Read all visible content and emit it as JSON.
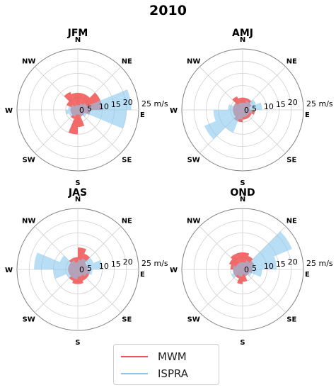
{
  "colors": {
    "mwm": "#f05050",
    "ispra": "#88c8ee",
    "grid": "#d0d0d0",
    "outer": "#808080"
  },
  "title": "2010",
  "chart_data": [
    {
      "type": "polar-bar",
      "title": "JFM",
      "directions": [
        "N",
        "NE",
        "E",
        "SE",
        "S",
        "SW",
        "W",
        "NW"
      ],
      "radial_ticks": [
        "0",
        "5",
        "10",
        "15",
        "20",
        "25 m/s"
      ],
      "rmax": 25,
      "bin_degrees": 22.5,
      "series": [
        {
          "name": "MWM",
          "bin_start_deg": [
            0,
            22.5,
            45,
            67.5,
            90,
            112.5,
            135,
            157.5,
            180,
            202.5,
            225,
            247.5,
            270,
            292.5,
            315,
            337.5
          ],
          "values": [
            7,
            7,
            10,
            10,
            5,
            3,
            3,
            7,
            10,
            4,
            3,
            3,
            3,
            5,
            8,
            7
          ]
        },
        {
          "name": "ISPRA",
          "bin_start_deg": [
            0,
            22.5,
            45,
            67.5,
            90,
            112.5,
            135,
            157.5,
            180,
            202.5,
            225,
            247.5,
            270,
            292.5,
            315,
            337.5
          ],
          "values": [
            2,
            3,
            4,
            22,
            20,
            4,
            3,
            2,
            2,
            3,
            4,
            5,
            4,
            3,
            2,
            2
          ]
        }
      ]
    },
    {
      "type": "polar-bar",
      "title": "AMJ",
      "directions": [
        "N",
        "NE",
        "E",
        "SE",
        "S",
        "SW",
        "W",
        "NW"
      ],
      "radial_ticks": [
        "0",
        "5",
        "10",
        "15",
        "20",
        "25 m/s"
      ],
      "rmax": 25,
      "bin_degrees": 22.5,
      "series": [
        {
          "name": "MWM",
          "bin_start_deg": [
            0,
            22.5,
            45,
            67.5,
            90,
            112.5,
            135,
            157.5,
            180,
            202.5,
            225,
            247.5,
            270,
            292.5,
            315,
            337.5
          ],
          "values": [
            5,
            5,
            4,
            3,
            5,
            4,
            4,
            4,
            5,
            5,
            4,
            4,
            4,
            4,
            6,
            5
          ]
        },
        {
          "name": "ISPRA",
          "bin_start_deg": [
            0,
            22.5,
            45,
            67.5,
            90,
            112.5,
            135,
            157.5,
            180,
            202.5,
            225,
            247.5,
            270,
            292.5,
            315,
            337.5
          ],
          "values": [
            3,
            4,
            6,
            8,
            4,
            3,
            3,
            3,
            4,
            10,
            17,
            12,
            6,
            4,
            3,
            3
          ]
        }
      ]
    },
    {
      "type": "polar-bar",
      "title": "JAS",
      "directions": [
        "N",
        "NE",
        "E",
        "SE",
        "S",
        "SW",
        "W",
        "NW"
      ],
      "radial_ticks": [
        "0",
        "5",
        "10",
        "15",
        "20",
        "25 m/s"
      ],
      "rmax": 25,
      "bin_degrees": 22.5,
      "series": [
        {
          "name": "MWM",
          "bin_start_deg": [
            0,
            22.5,
            45,
            67.5,
            90,
            112.5,
            135,
            157.5,
            180,
            202.5,
            225,
            247.5,
            270,
            292.5,
            315,
            337.5
          ],
          "values": [
            9,
            7,
            4,
            4,
            5,
            5,
            5,
            6,
            6,
            5,
            4,
            4,
            4,
            4,
            5,
            5
          ]
        },
        {
          "name": "ISPRA",
          "bin_start_deg": [
            0,
            22.5,
            45,
            67.5,
            90,
            112.5,
            135,
            157.5,
            180,
            202.5,
            225,
            247.5,
            270,
            292.5,
            315,
            337.5
          ],
          "values": [
            4,
            5,
            7,
            10,
            6,
            4,
            3,
            3,
            4,
            4,
            5,
            10,
            18,
            8,
            4,
            3
          ]
        }
      ]
    },
    {
      "type": "polar-bar",
      "title": "OND",
      "directions": [
        "N",
        "NE",
        "E",
        "SE",
        "S",
        "SW",
        "W",
        "NW"
      ],
      "radial_ticks": [
        "0",
        "5",
        "10",
        "15",
        "20",
        "25 m/s"
      ],
      "rmax": 25,
      "bin_degrees": 22.5,
      "series": [
        {
          "name": "MWM",
          "bin_start_deg": [
            0,
            22.5,
            45,
            67.5,
            90,
            112.5,
            135,
            157.5,
            180,
            202.5,
            225,
            247.5,
            270,
            292.5,
            315,
            337.5
          ],
          "values": [
            7,
            6,
            5,
            4,
            4,
            3,
            3,
            5,
            6,
            4,
            4,
            4,
            5,
            6,
            7,
            7
          ]
        },
        {
          "name": "ISPRA",
          "bin_start_deg": [
            0,
            22.5,
            45,
            67.5,
            90,
            112.5,
            135,
            157.5,
            180,
            202.5,
            225,
            247.5,
            270,
            292.5,
            315,
            337.5
          ],
          "values": [
            3,
            4,
            22,
            14,
            8,
            4,
            3,
            2,
            3,
            3,
            5,
            4,
            4,
            3,
            3,
            3
          ]
        }
      ]
    }
  ],
  "legend": {
    "items": [
      {
        "label": "MWM"
      },
      {
        "label": "ISPRA"
      }
    ]
  }
}
